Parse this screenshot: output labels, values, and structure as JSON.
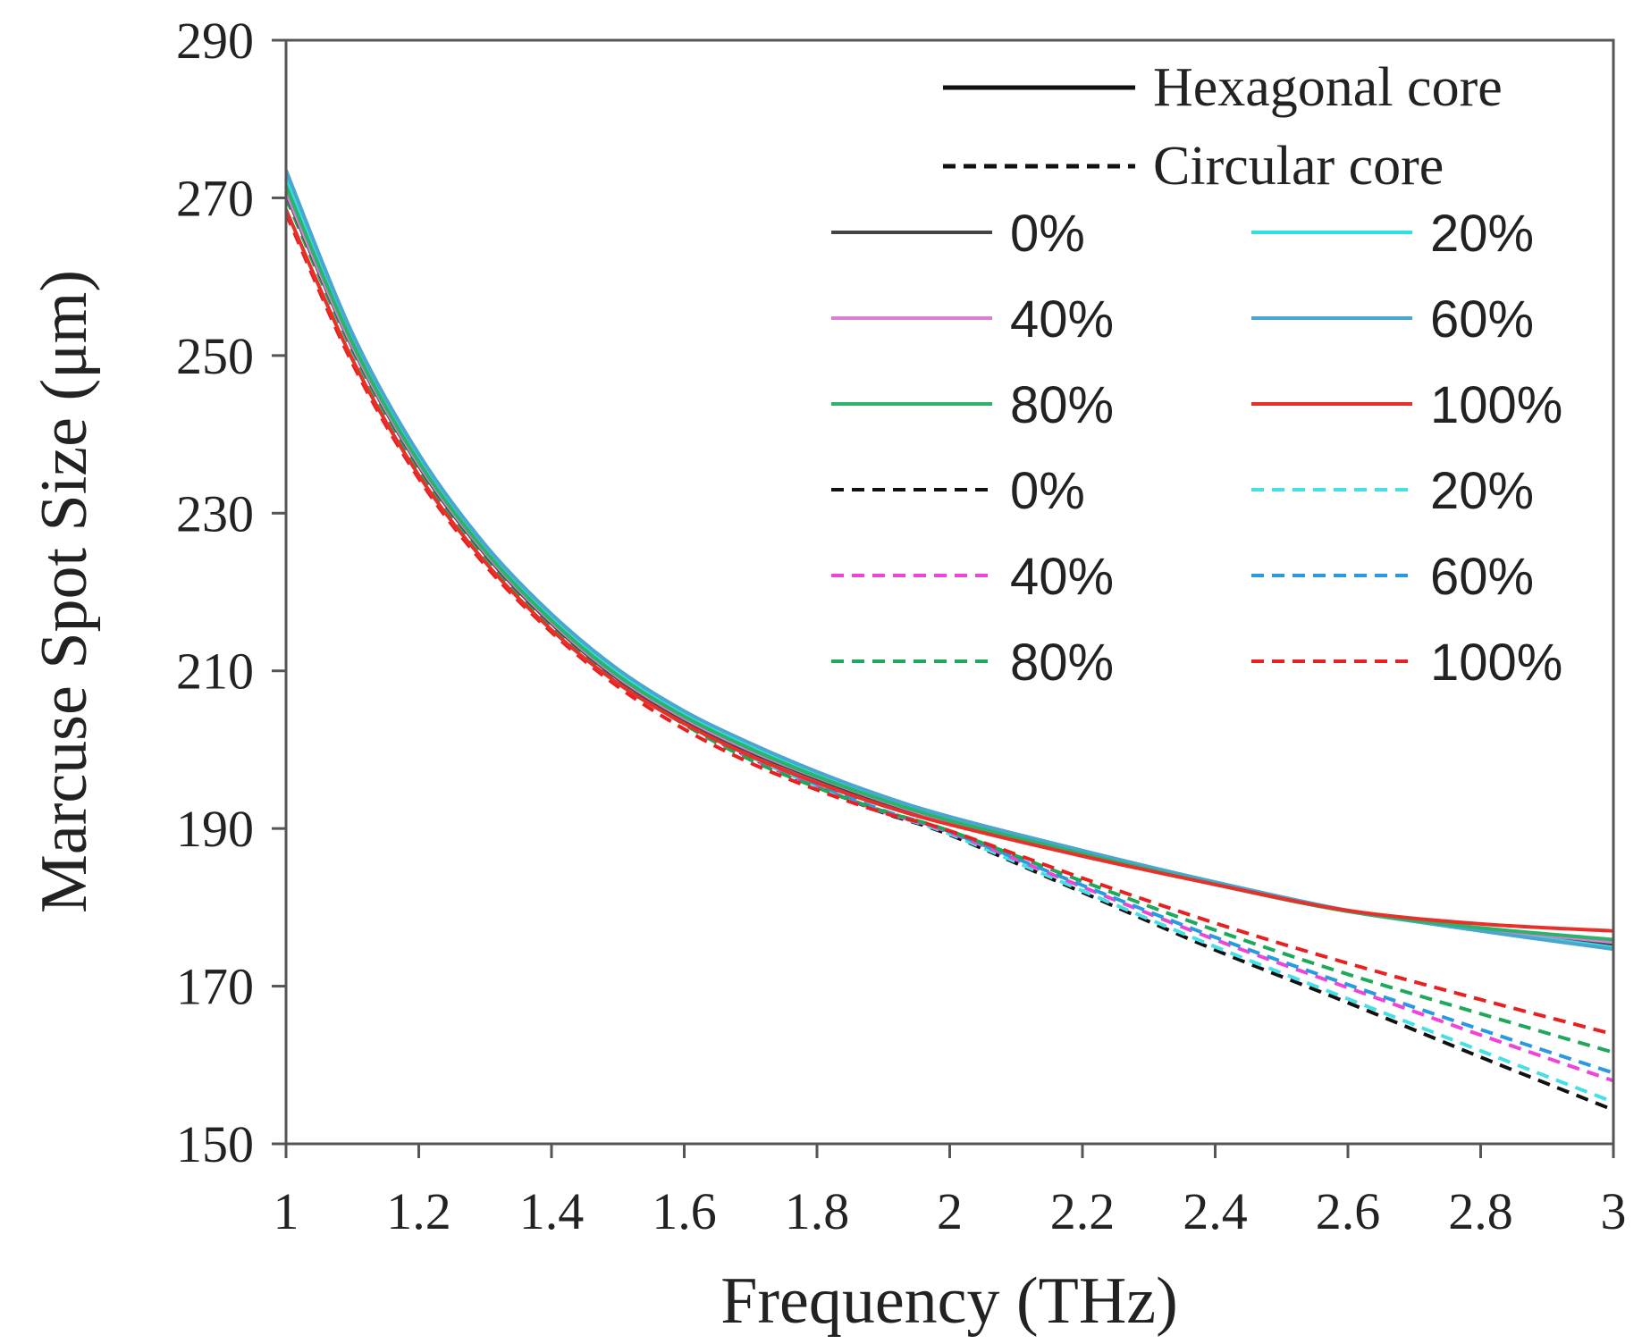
{
  "chart_data": {
    "type": "line",
    "title": "",
    "xlabel": "Frequency (THz)",
    "ylabel": "Marcuse Spot Size (μm)",
    "xlim": [
      1,
      3
    ],
    "ylim": [
      150,
      290
    ],
    "xticks": [
      1,
      1.2,
      1.4,
      1.6,
      1.8,
      2,
      2.2,
      2.4,
      2.6,
      2.8,
      3
    ],
    "xtick_labels": [
      "1",
      "1.2",
      "1.4",
      "1.6",
      "1.8",
      "2",
      "2.2",
      "2.4",
      "2.6",
      "2.8",
      "3"
    ],
    "yticks": [
      150,
      170,
      190,
      210,
      230,
      250,
      270,
      290
    ],
    "ytick_labels": [
      "150",
      "170",
      "190",
      "210",
      "230",
      "250",
      "270",
      "290"
    ],
    "grid": false,
    "legend_position": "top-right",
    "legend_styles": [
      {
        "label": "Hexagonal core",
        "style": "solid",
        "color": "#111111"
      },
      {
        "label": "Circular core",
        "style": "dashed",
        "color": "#111111"
      }
    ],
    "x": [
      1.0,
      1.1,
      1.2,
      1.3,
      1.4,
      1.5,
      1.6,
      1.7,
      1.8,
      1.9,
      2.0,
      2.2,
      2.4,
      2.6,
      2.8,
      3.0
    ],
    "series": [
      {
        "name": "0%",
        "group": "Hexagonal core",
        "style": "solid",
        "color": "#444444",
        "values": [
          270.5,
          251.0,
          236.0,
          224.8,
          216.0,
          209.0,
          203.8,
          199.7,
          196.3,
          193.3,
          190.8,
          186.7,
          182.9,
          179.5,
          177.2,
          175.3
        ]
      },
      {
        "name": "20%",
        "group": "Hexagonal core",
        "style": "solid",
        "color": "#33dede",
        "values": [
          272.5,
          252.3,
          237.0,
          225.5,
          216.8,
          209.8,
          204.5,
          200.4,
          196.9,
          193.8,
          191.2,
          187.0,
          183.0,
          179.5,
          177.1,
          174.9
        ]
      },
      {
        "name": "40%",
        "group": "Hexagonal core",
        "style": "solid",
        "color": "#d97fd4",
        "values": [
          270.8,
          251.2,
          236.2,
          225.0,
          216.2,
          209.2,
          204.0,
          199.9,
          196.5,
          193.5,
          190.9,
          186.8,
          182.9,
          179.5,
          177.3,
          175.6
        ]
      },
      {
        "name": "60%",
        "group": "Hexagonal core",
        "style": "solid",
        "color": "#4aa5cf",
        "values": [
          273.5,
          252.8,
          237.5,
          226.0,
          217.2,
          210.2,
          204.9,
          200.8,
          197.2,
          194.1,
          191.5,
          187.2,
          183.2,
          179.6,
          177.0,
          174.7
        ]
      },
      {
        "name": "80%",
        "group": "Hexagonal core",
        "style": "solid",
        "color": "#2cb36a",
        "values": [
          271.5,
          251.6,
          236.5,
          225.2,
          216.4,
          209.4,
          204.2,
          200.1,
          196.6,
          193.6,
          191.0,
          186.8,
          182.9,
          179.5,
          177.4,
          175.9
        ]
      },
      {
        "name": "100%",
        "group": "Hexagonal core",
        "style": "solid",
        "color": "#e8302a",
        "values": [
          268.5,
          249.5,
          234.8,
          223.8,
          215.2,
          208.4,
          203.3,
          199.2,
          195.8,
          192.9,
          190.5,
          186.5,
          182.9,
          179.6,
          177.9,
          177.0
        ]
      },
      {
        "name": "0%",
        "group": "Circular core",
        "style": "dashed",
        "color": "#111111",
        "values": [
          270.8,
          251.3,
          236.2,
          225.0,
          216.2,
          209.2,
          203.6,
          199.0,
          195.3,
          192.0,
          189.2,
          181.9,
          174.6,
          167.9,
          161.0,
          154.3
        ]
      },
      {
        "name": "20%",
        "group": "Circular core",
        "style": "dashed",
        "color": "#44e0e6",
        "values": [
          271.5,
          251.7,
          236.5,
          225.3,
          216.5,
          209.5,
          203.8,
          199.1,
          195.4,
          192.1,
          189.3,
          182.1,
          175.0,
          168.4,
          161.8,
          155.3
        ]
      },
      {
        "name": "40%",
        "group": "Circular core",
        "style": "dashed",
        "color": "#f044d8",
        "values": [
          270.5,
          251.0,
          236.0,
          224.8,
          216.0,
          209.0,
          203.4,
          198.9,
          195.3,
          192.1,
          189.5,
          182.6,
          175.9,
          169.8,
          163.8,
          158.0
        ]
      },
      {
        "name": "60%",
        "group": "Circular core",
        "style": "dashed",
        "color": "#2a9ae0",
        "values": [
          272.5,
          252.3,
          237.0,
          225.6,
          216.8,
          209.7,
          204.0,
          199.4,
          195.6,
          192.3,
          189.6,
          182.8,
          176.2,
          170.2,
          164.5,
          159.0
        ]
      },
      {
        "name": "80%",
        "group": "Circular core",
        "style": "dashed",
        "color": "#1fa85a",
        "values": [
          270.0,
          250.6,
          235.6,
          224.5,
          215.7,
          208.7,
          203.2,
          198.7,
          195.2,
          192.2,
          189.7,
          183.3,
          177.1,
          171.5,
          166.5,
          161.6
        ]
      },
      {
        "name": "100%",
        "group": "Circular core",
        "style": "dashed",
        "color": "#e82020",
        "values": [
          268.0,
          249.0,
          234.4,
          223.4,
          214.9,
          208.0,
          202.6,
          198.3,
          194.9,
          192.0,
          189.7,
          183.7,
          178.0,
          172.9,
          168.3,
          163.9
        ]
      }
    ]
  }
}
